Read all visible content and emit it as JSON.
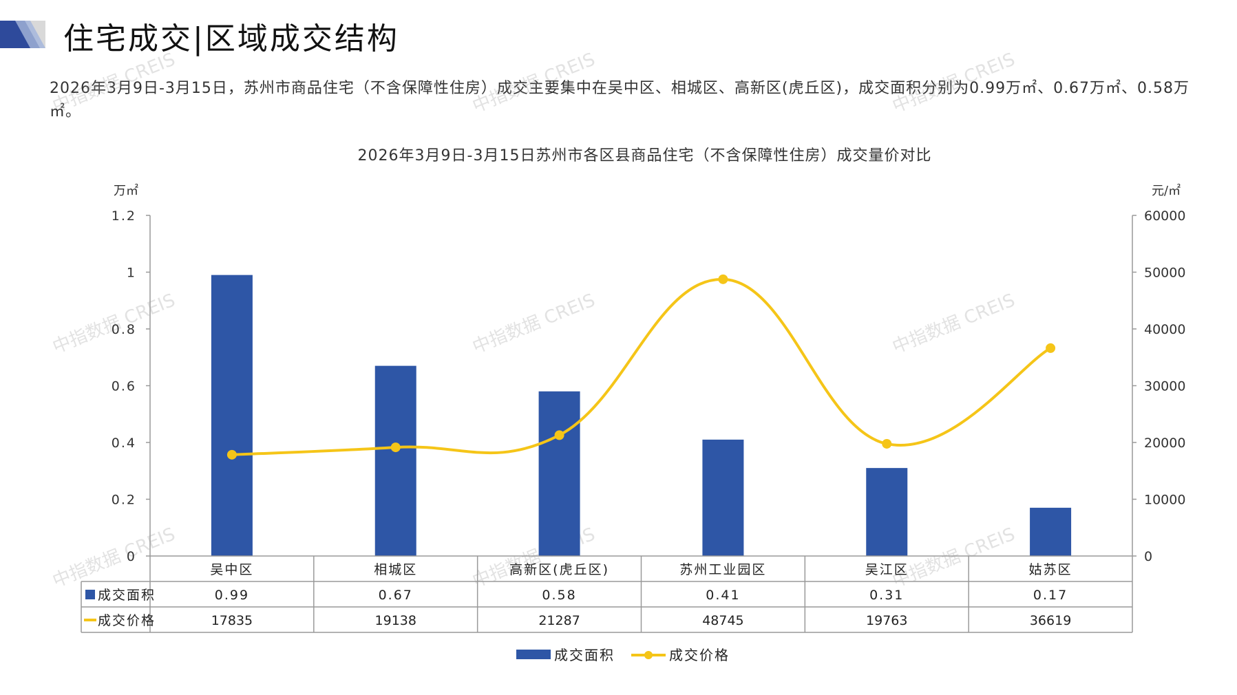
{
  "header": {
    "title": "住宅成交|区域成交结构",
    "summary": "2026年3月9日-3月15日，苏州市商品住宅（不含保障性住房）成交主要集中在吴中区、相城区、高新区(虎丘区)，成交面积分别为0.99万㎡、0.67万㎡、0.58万㎡。"
  },
  "watermark": "中指数据 CREIS",
  "colors": {
    "bar": "#2E56A6",
    "line": "#F5C518",
    "accent": "#2E4A9B"
  },
  "chart_data": {
    "type": "bar",
    "title": "2026年3月9日-3月15日苏州市各区县商品住宅（不含保障性住房）成交量价对比",
    "categories": [
      "吴中区",
      "相城区",
      "高新区(虎丘区)",
      "苏州工业园区",
      "吴江区",
      "姑苏区"
    ],
    "series": [
      {
        "name": "成交面积",
        "type": "bar",
        "axis": "left",
        "values": [
          0.99,
          0.67,
          0.58,
          0.41,
          0.31,
          0.17
        ],
        "labels": [
          "0.99",
          "0.67",
          "0.58",
          "0.41",
          "0.31",
          "0.17"
        ]
      },
      {
        "name": "成交价格",
        "type": "line",
        "axis": "right",
        "values": [
          17835,
          19138,
          21287,
          48745,
          19763,
          36619
        ],
        "labels": [
          "17835",
          "19138",
          "21287",
          "48745",
          "19763",
          "36619"
        ]
      }
    ],
    "y_left": {
      "unit": "万㎡",
      "ylim": [
        0,
        1.2
      ],
      "ticks": [
        "0",
        "0.2",
        "0.4",
        "0.6",
        "0.8",
        "1",
        "1.2"
      ]
    },
    "y_right": {
      "unit": "元/㎡",
      "ylim": [
        0,
        60000
      ],
      "ticks": [
        "0",
        "10000",
        "20000",
        "30000",
        "40000",
        "50000",
        "60000"
      ]
    },
    "legend": "bottom",
    "grid": false,
    "data_table": true
  }
}
